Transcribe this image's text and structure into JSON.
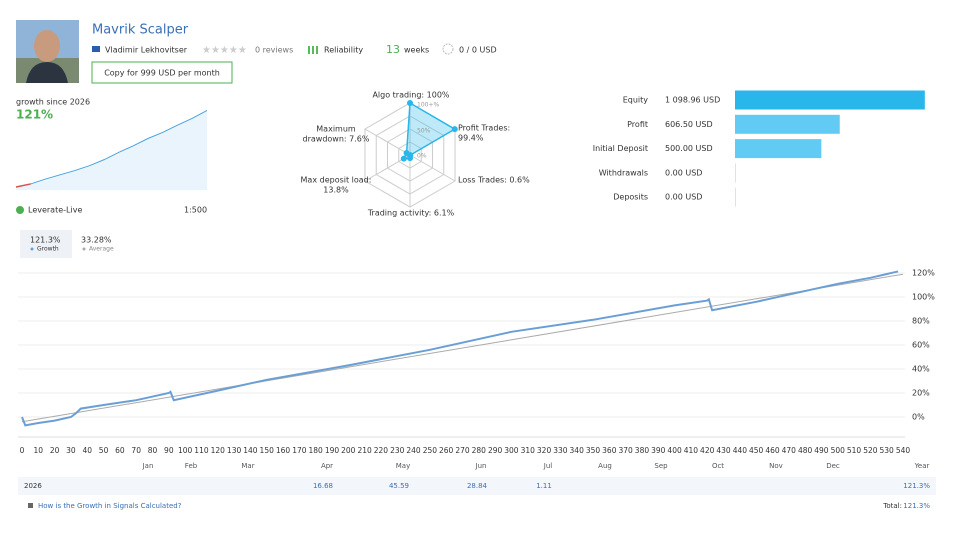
{
  "header": {
    "name": "Mavrik Scalper",
    "author": "Vladimir Lekhovitser",
    "reviews": "0 reviews",
    "reliability": "Reliability",
    "weeks_value": "13",
    "weeks_unit": "weeks",
    "subscribers": "0 / 0 USD",
    "copy_button": "Copy for 999 USD per month"
  },
  "mini_chart": {
    "label": "growth since 2026",
    "value": "121%",
    "broker": "Leverate-Live",
    "leverage": "1:500",
    "values": [
      -5,
      0,
      8,
      15,
      22,
      30,
      40,
      52,
      63,
      75,
      85,
      97,
      108,
      121
    ],
    "ylim": [
      -10,
      130
    ]
  },
  "radar": {
    "labels": [
      [
        "Algo trading: 100%"
      ],
      [
        "Profit Trades:",
        "99.4%"
      ],
      [
        "Loss Trades: 0.6%"
      ],
      [
        "Trading activity: 6.1%"
      ],
      [
        "Max deposit load:",
        "13.8%"
      ],
      [
        "Maximum",
        "drawdown: 7.6%"
      ]
    ],
    "values": [
      100,
      99.4,
      0.6,
      6.1,
      13.8,
      7.6
    ],
    "rlim": [
      0,
      100
    ],
    "ring_labels": [
      "100+%",
      "50%",
      "0%"
    ]
  },
  "balance": {
    "xlim": [
      0,
      1100
    ],
    "rows": [
      {
        "label": "Equity",
        "value": 1098.96,
        "value_label": "1 098.96 USD",
        "color": "#29b6ea"
      },
      {
        "label": "Profit",
        "value": 606.5,
        "value_label": "606.50 USD",
        "color": "#62cbf3"
      },
      {
        "label": "Initial Deposit",
        "value": 500,
        "value_label": "500.00 USD",
        "color": "#62cbf3"
      },
      {
        "label": "Withdrawals",
        "value": 0,
        "value_label": "0.00 USD",
        "color": "#62cbf3"
      },
      {
        "label": "Deposits",
        "value": 0,
        "value_label": "0.00 USD",
        "color": "#62cbf3"
      }
    ]
  },
  "growth_chart": {
    "tabs": [
      {
        "value": "121.3%",
        "label": "Growth"
      },
      {
        "value": "33.28%",
        "label": "Average"
      }
    ],
    "color": "#6a9fd6",
    "x": [
      0,
      2,
      10,
      20,
      30,
      33,
      36,
      50,
      70,
      90,
      91,
      93,
      120,
      150,
      200,
      250,
      300,
      350,
      400,
      420,
      421,
      423,
      450,
      500,
      520,
      537
    ],
    "values": [
      0,
      -7,
      -5,
      -3,
      0,
      3,
      7,
      10,
      14,
      20,
      21,
      14,
      22,
      31,
      43,
      56,
      71,
      81,
      93,
      97,
      98,
      89,
      96,
      111,
      116,
      121.3
    ],
    "trend": {
      "x": [
        0,
        540
      ],
      "values": [
        -4,
        119
      ]
    },
    "xlim": [
      0,
      540
    ],
    "xticks": [
      0,
      10,
      20,
      30,
      40,
      50,
      60,
      70,
      80,
      90,
      100,
      110,
      120,
      130,
      140,
      150,
      160,
      170,
      180,
      190,
      200,
      210,
      220,
      230,
      240,
      250,
      260,
      270,
      280,
      290,
      300,
      310,
      320,
      330,
      340,
      350,
      360,
      370,
      380,
      390,
      400,
      410,
      420,
      430,
      440,
      450,
      460,
      470,
      480,
      490,
      500,
      510,
      520,
      530,
      540
    ],
    "ylim": [
      -16,
      130
    ],
    "yticks": [
      {
        "value": 0,
        "label": "0%"
      },
      {
        "value": 20,
        "label": "20%"
      },
      {
        "value": 40,
        "label": "40%"
      },
      {
        "value": 60,
        "label": "60%"
      },
      {
        "value": 80,
        "label": "80%"
      },
      {
        "value": 100,
        "label": "100%"
      },
      {
        "value": 120,
        "label": "120%"
      }
    ],
    "months": [
      "Jan",
      "Feb",
      "Mar",
      "Apr",
      "May",
      "Jun",
      "Jul",
      "Aug",
      "Sep",
      "Oct",
      "Nov",
      "Dec",
      "Year"
    ]
  },
  "table": {
    "year": "2026",
    "cells": [
      null,
      null,
      null,
      16.68,
      45.59,
      28.84,
      1.11,
      null,
      null,
      null,
      null,
      null,
      "121.3%"
    ]
  },
  "footer": {
    "link": "How is the Growth in Signals Calculated?",
    "total_label": "Total:",
    "total_value": "121.3%"
  }
}
